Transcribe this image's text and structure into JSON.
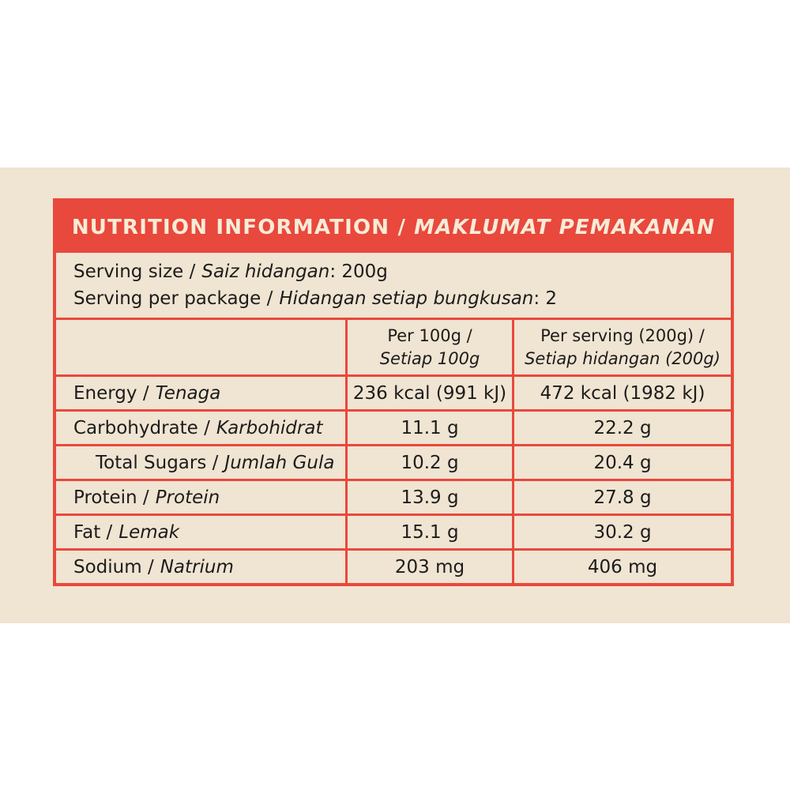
{
  "label": {
    "title_en": "NUTRITION INFORMATION /",
    "title_ms": "MAKLUMAT PEMAKANAN",
    "serving": {
      "line1_en": "Serving size /",
      "line1_ms": "Saiz hidangan",
      "line1_value": ": 200g",
      "line2_en": "Serving per package /",
      "line2_ms": "Hidangan setiap bungkusan",
      "line2_value": ": 2"
    },
    "columns": {
      "per100_line1": "Per 100g /",
      "per100_line2": "Setiap 100g",
      "perserving_line1": "Per serving (200g) /",
      "perserving_line2": "Setiap hidangan (200g)"
    },
    "rows": [
      {
        "en": "Energy /",
        "ms": "Tenaga",
        "per_100g": "236 kcal (991 kJ)",
        "per_serving": "472 kcal (1982 kJ)"
      },
      {
        "en": "Carbohydrate /",
        "ms": "Karbohidrat",
        "per_100g": "11.1 g",
        "per_serving": "22.2 g"
      },
      {
        "en": "Total Sugars /",
        "ms": "Jumlah Gula",
        "per_100g": "10.2 g",
        "per_serving": "20.4 g"
      },
      {
        "en": "Protein /",
        "ms": "Protein",
        "per_100g": "13.9 g",
        "per_serving": "27.8 g"
      },
      {
        "en": "Fat /",
        "ms": "Lemak",
        "per_100g": "15.1 g",
        "per_serving": "30.2 g"
      },
      {
        "en": "Sodium /",
        "ms": "Natrium",
        "per_100g": "203 mg",
        "per_serving": "406 mg"
      }
    ],
    "colors": {
      "red": "#E9483D",
      "cream": "#F0E4D2",
      "title_text": "#F7ECD7",
      "text": "#1C1C1B"
    }
  }
}
